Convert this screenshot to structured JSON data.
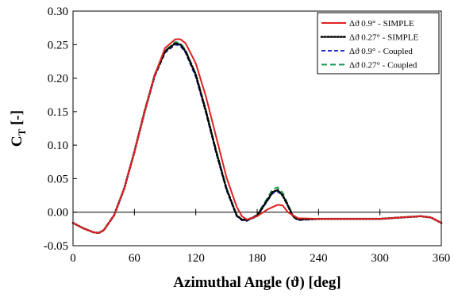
{
  "chart_data": {
    "type": "line",
    "xlabel": "Azimuthal Angle (ϑ) [deg]",
    "ylabel_main": "C",
    "ylabel_sub": "T",
    "ylabel_unit": " [-]",
    "xlim": [
      0,
      360
    ],
    "ylim": [
      -0.05,
      0.3
    ],
    "xticks": [
      0,
      60,
      120,
      180,
      240,
      300,
      360
    ],
    "yticks": [
      "-0.05",
      "0.00",
      "0.05",
      "0.10",
      "0.15",
      "0.20",
      "0.25",
      "0.30"
    ],
    "grid": false,
    "zero_line": true,
    "legend_position": "top-right",
    "series": [
      {
        "name": "Δϑ 0.9° - SIMPLE",
        "color": "#e02020",
        "dash": "solid",
        "x": [
          0,
          10,
          20,
          25,
          30,
          40,
          50,
          60,
          70,
          80,
          90,
          100,
          105,
          110,
          120,
          130,
          140,
          150,
          160,
          165,
          170,
          180,
          190,
          200,
          205,
          210,
          220,
          240,
          260,
          280,
          300,
          320,
          340,
          350,
          360
        ],
        "y": [
          -0.016,
          -0.024,
          -0.03,
          -0.031,
          -0.027,
          -0.005,
          0.035,
          0.09,
          0.15,
          0.205,
          0.245,
          0.258,
          0.258,
          0.252,
          0.222,
          0.172,
          0.112,
          0.052,
          0.008,
          -0.006,
          -0.011,
          -0.006,
          0.004,
          0.011,
          0.01,
          0.0,
          -0.009,
          -0.01,
          -0.01,
          -0.01,
          -0.01,
          -0.008,
          -0.006,
          -0.008,
          -0.016
        ]
      },
      {
        "name": "Δϑ 0.27° - SIMPLE",
        "color": "#000000",
        "dash": "dot",
        "x": [
          0,
          10,
          20,
          25,
          30,
          40,
          50,
          60,
          70,
          80,
          90,
          100,
          105,
          110,
          120,
          130,
          140,
          150,
          160,
          165,
          170,
          180,
          190,
          195,
          200,
          205,
          210,
          215,
          220,
          240,
          260,
          280,
          300,
          320,
          340,
          350,
          360
        ],
        "y": [
          -0.016,
          -0.024,
          -0.03,
          -0.031,
          -0.027,
          -0.005,
          0.035,
          0.09,
          0.15,
          0.205,
          0.24,
          0.252,
          0.25,
          0.24,
          0.205,
          0.15,
          0.09,
          0.035,
          -0.005,
          -0.011,
          -0.012,
          -0.005,
          0.018,
          0.03,
          0.033,
          0.025,
          0.01,
          -0.006,
          -0.011,
          -0.01,
          -0.01,
          -0.01,
          -0.01,
          -0.008,
          -0.006,
          -0.008,
          -0.016
        ]
      },
      {
        "name": "Δϑ 0.9° - Coupled",
        "color": "#1f2fc8",
        "dash": "dash",
        "x": [
          0,
          10,
          20,
          25,
          30,
          40,
          50,
          60,
          70,
          80,
          90,
          100,
          105,
          110,
          120,
          130,
          140,
          150,
          160,
          165,
          170,
          180,
          190,
          195,
          200,
          205,
          210,
          215,
          220,
          240,
          260,
          280,
          300,
          320,
          340,
          350,
          360
        ],
        "y": [
          -0.016,
          -0.024,
          -0.03,
          -0.031,
          -0.027,
          -0.005,
          0.035,
          0.09,
          0.15,
          0.203,
          0.238,
          0.25,
          0.248,
          0.238,
          0.202,
          0.148,
          0.088,
          0.033,
          -0.006,
          -0.012,
          -0.013,
          -0.006,
          0.017,
          0.028,
          0.031,
          0.024,
          0.009,
          -0.007,
          -0.012,
          -0.01,
          -0.01,
          -0.01,
          -0.01,
          -0.008,
          -0.006,
          -0.008,
          -0.016
        ]
      },
      {
        "name": "Δϑ 0.27° - Coupled",
        "color": "#1a9e50",
        "dash": "longdash",
        "x": [
          0,
          10,
          20,
          25,
          30,
          40,
          50,
          60,
          70,
          80,
          90,
          100,
          105,
          110,
          120,
          130,
          140,
          150,
          160,
          165,
          170,
          180,
          190,
          195,
          200,
          205,
          210,
          215,
          220,
          240,
          260,
          280,
          300,
          320,
          340,
          350,
          360
        ],
        "y": [
          -0.016,
          -0.024,
          -0.03,
          -0.031,
          -0.027,
          -0.005,
          0.035,
          0.091,
          0.152,
          0.206,
          0.241,
          0.254,
          0.252,
          0.242,
          0.206,
          0.152,
          0.092,
          0.036,
          -0.004,
          -0.011,
          -0.012,
          -0.004,
          0.021,
          0.034,
          0.037,
          0.029,
          0.012,
          -0.005,
          -0.011,
          -0.01,
          -0.01,
          -0.01,
          -0.01,
          -0.008,
          -0.006,
          -0.008,
          -0.016
        ]
      }
    ]
  }
}
